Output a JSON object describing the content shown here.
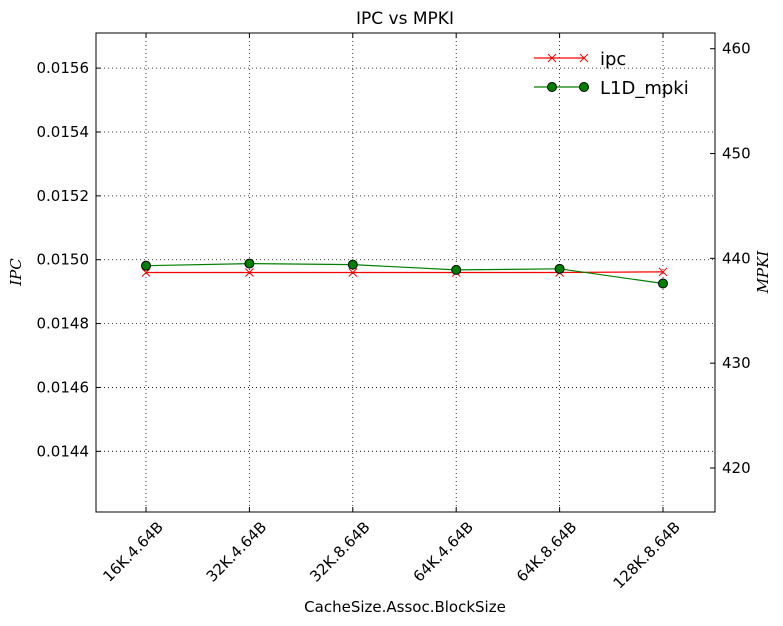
{
  "chart_data": {
    "type": "line",
    "title": "IPC vs MPKI",
    "xlabel": "CacheSize.Assoc.BlockSize",
    "ylabel": "IPC",
    "ylabel_right": "MPKI",
    "categories": [
      "16K.4.64B",
      "32K.4.64B",
      "32K.8.64B",
      "64K.4.64B",
      "64K.8.64B",
      "128K.8.64B"
    ],
    "left_axis": {
      "ylim": [
        0.01421,
        0.01571
      ],
      "ticks": [
        0.0144,
        0.0146,
        0.0148,
        0.015,
        0.0152,
        0.0154,
        0.0156
      ],
      "tick_labels": [
        "0.0144",
        "0.0146",
        "0.0148",
        "0.0150",
        "0.0152",
        "0.0154",
        "0.0156"
      ]
    },
    "right_axis": {
      "ylim": [
        415.8,
        461.5
      ],
      "ticks": [
        420,
        430,
        440,
        450,
        460
      ],
      "tick_labels": [
        "420",
        "430",
        "440",
        "450",
        "460"
      ]
    },
    "series": [
      {
        "name": "ipc",
        "axis": "left",
        "color": "#ff0000",
        "marker": "x",
        "values": [
          0.01496,
          0.01496,
          0.01496,
          0.01496,
          0.01496,
          0.014962
        ]
      },
      {
        "name": "L1D_mpki",
        "axis": "right",
        "color": "#008000",
        "marker": "circle",
        "values": [
          439.3,
          439.5,
          439.4,
          438.9,
          439.0,
          437.6
        ]
      }
    ],
    "grid": true,
    "legend": "top-right"
  }
}
